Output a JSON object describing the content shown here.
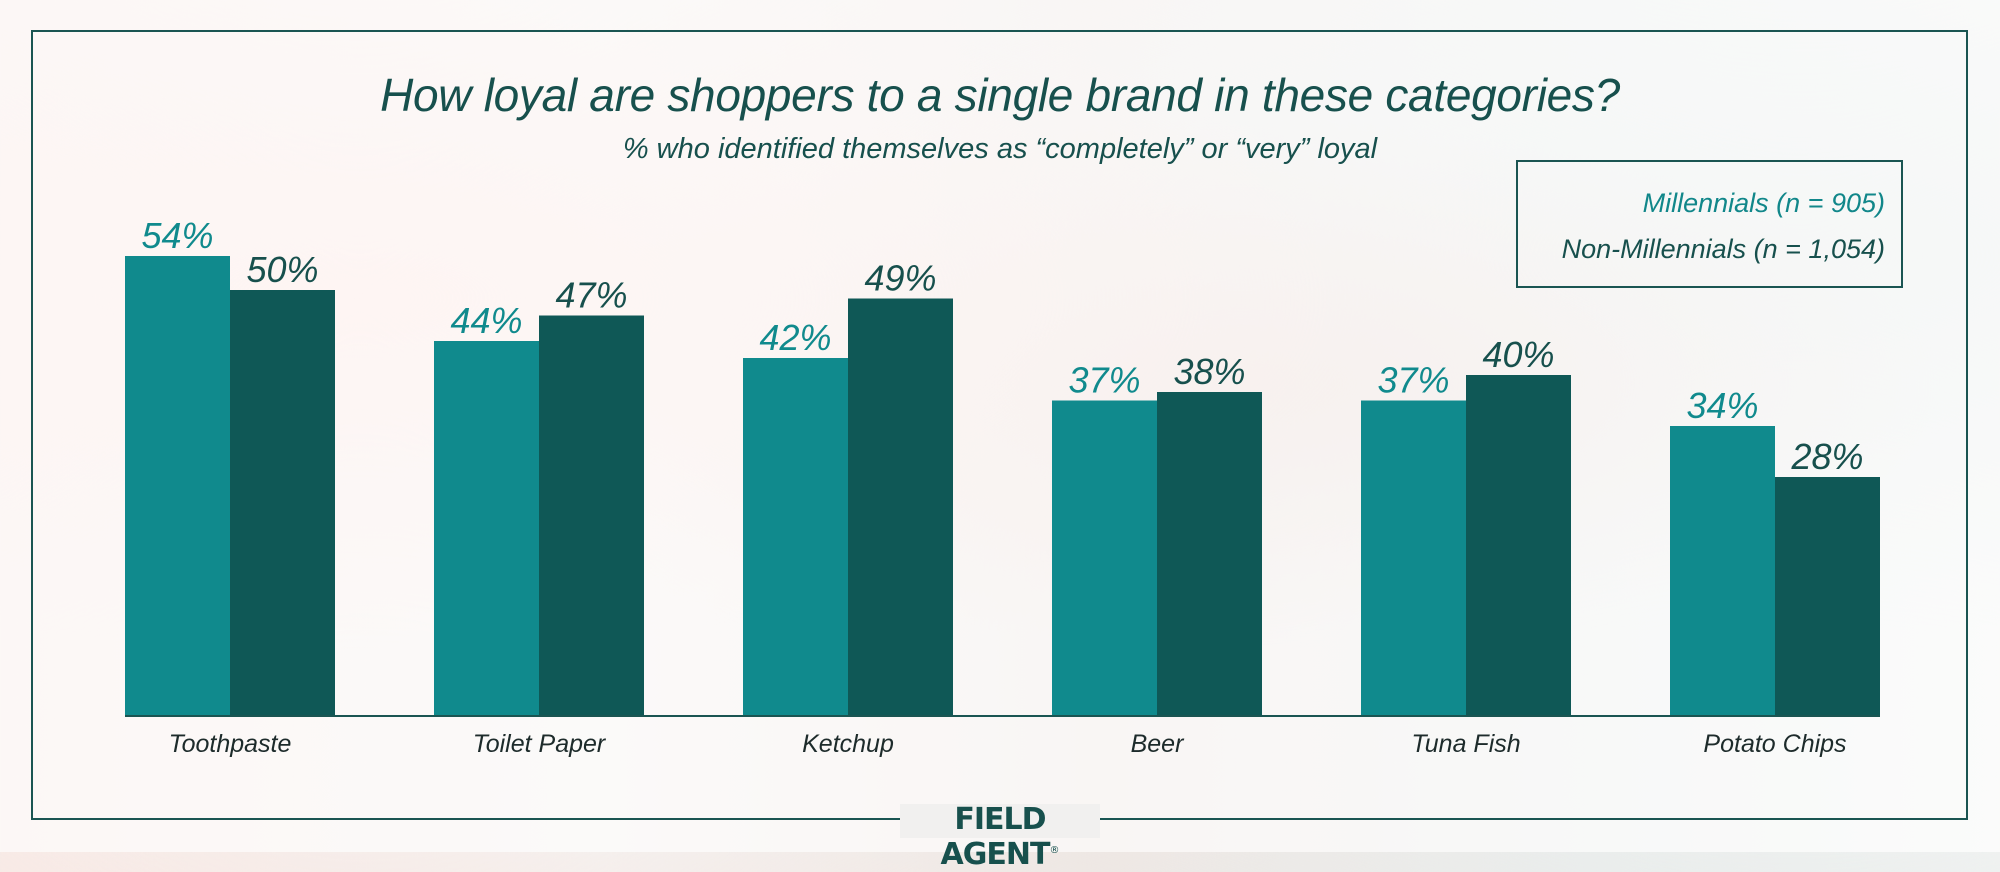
{
  "colors": {
    "millennials": "#108a8d",
    "non_millennials": "#0f5856",
    "frame": "#1a5552",
    "title": "#17504d"
  },
  "chart_data": {
    "type": "bar",
    "title": "How loyal are shoppers to a single brand in these categories?",
    "subtitle": "% who identified themselves as “completely” or “very” loyal",
    "categories": [
      "Toothpaste",
      "Toilet Paper",
      "Ketchup",
      "Beer",
      "Tuna Fish",
      "Potato Chips"
    ],
    "series": [
      {
        "name": "Millennials (n = 905)",
        "values": [
          54,
          44,
          42,
          37,
          37,
          34
        ],
        "labels": [
          "54%",
          "44%",
          "42%",
          "37%",
          "37%",
          "34%"
        ]
      },
      {
        "name": "Non-Millennials (n = 1,054)",
        "values": [
          50,
          47,
          49,
          38,
          40,
          28
        ],
        "labels": [
          "50%",
          "47%",
          "49%",
          "38%",
          "40%",
          "28%"
        ]
      }
    ],
    "ylim": [
      0,
      60
    ],
    "legend_position": "top-right",
    "grid": false
  },
  "brand": {
    "logo": "FIELD AGENT",
    "mark": "®"
  }
}
